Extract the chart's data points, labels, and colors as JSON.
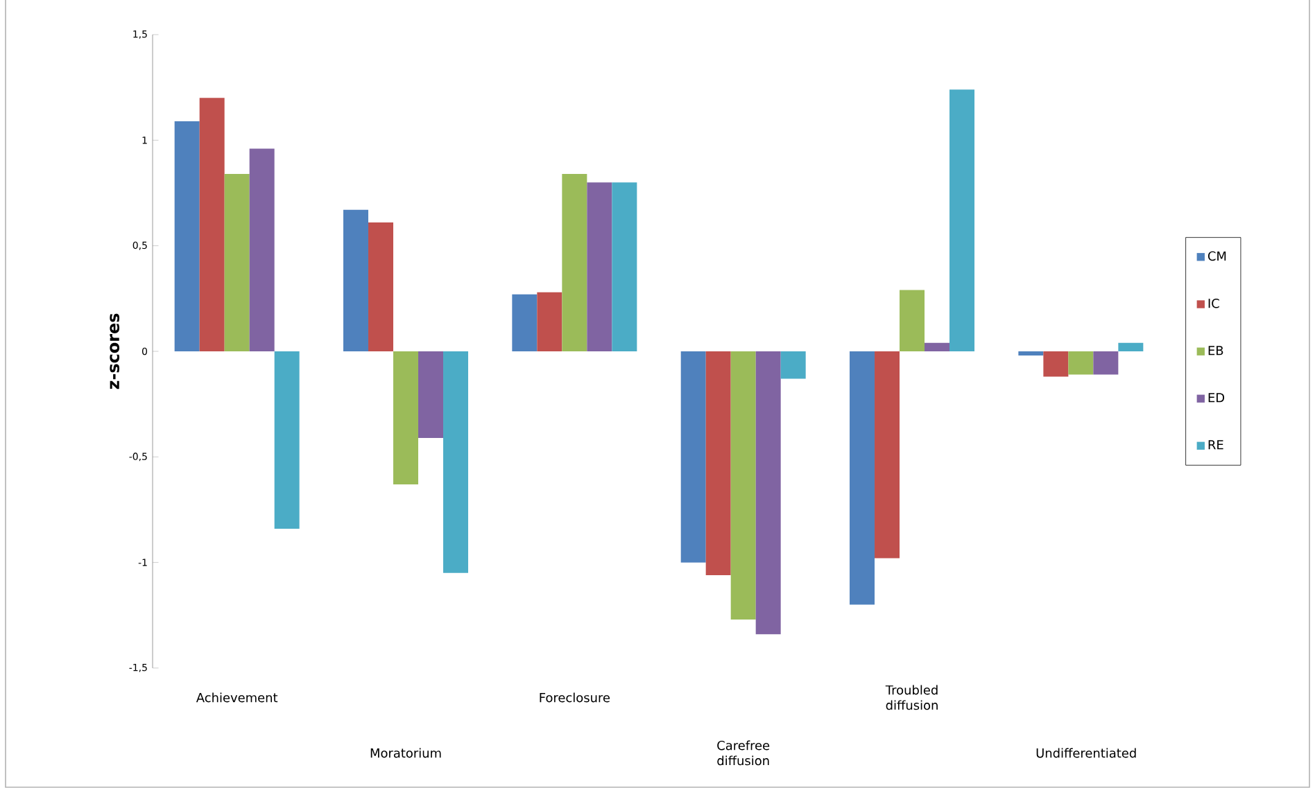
{
  "chart_data": {
    "type": "bar",
    "ylabel": "z-scores",
    "categories": [
      "Achievement",
      "Moratorium",
      "Foreclosure",
      "Carefree diffusion",
      "Troubled diffusion",
      "Undifferentiated"
    ],
    "series": [
      {
        "name": "CM",
        "color": "#4f81bd",
        "values": [
          1.09,
          0.67,
          0.27,
          -1.0,
          -1.2,
          -0.02
        ]
      },
      {
        "name": "IC",
        "color": "#c0504d",
        "values": [
          1.2,
          0.61,
          0.28,
          -1.06,
          -0.98,
          -0.12
        ]
      },
      {
        "name": "EB",
        "color": "#9bbb59",
        "values": [
          0.84,
          -0.63,
          0.84,
          -1.27,
          0.29,
          -0.11
        ]
      },
      {
        "name": "ED",
        "color": "#8064a2",
        "values": [
          0.96,
          -0.41,
          0.8,
          -1.34,
          0.04,
          -0.11
        ]
      },
      {
        "name": "RE",
        "color": "#4bacc6",
        "values": [
          -0.84,
          -1.05,
          0.8,
          -0.13,
          1.24,
          0.04
        ]
      }
    ],
    "ylim": [
      -1.5,
      1.5
    ],
    "yticks": [
      {
        "value": -1.5,
        "label": "-1,5"
      },
      {
        "value": -1,
        "label": "-1"
      },
      {
        "value": -0.5,
        "label": "-0,5"
      },
      {
        "value": 0,
        "label": "0"
      },
      {
        "value": 0.5,
        "label": "0,5"
      },
      {
        "value": 1,
        "label": "1"
      },
      {
        "value": 1.5,
        "label": "1,5"
      }
    ],
    "grid": false,
    "legend": "right"
  }
}
